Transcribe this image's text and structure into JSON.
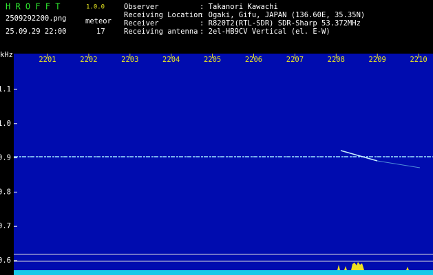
{
  "header": {
    "app_name": "H R O F F T",
    "version": "1.0.0",
    "filename": "2509292200.png",
    "timestamp": "25.09.29 22:00",
    "count_label": "meteor",
    "count": "17",
    "fields": [
      {
        "label": "Observer",
        "value": ": Takanori Kawachi"
      },
      {
        "label": "Receiving Location",
        "value": ": Ogaki, Gifu, JAPAN (136.60E, 35.35N)"
      },
      {
        "label": "Receiver",
        "value": ": R820T2(RTL-SDR) SDR-Sharp 53.372MHz"
      },
      {
        "label": "Receiving antenna",
        "value": ": 2el-HB9CV Vertical (el. E-W)"
      }
    ]
  },
  "spectrogram": {
    "frequency_unit": "kHz",
    "time_labels": [
      "2201",
      "2202",
      "2203",
      "2204",
      "2205",
      "2206",
      "2207",
      "2208",
      "2209",
      "2210"
    ],
    "frequency_labels": [
      "1.1",
      "1.0",
      "0.9",
      "0.8",
      "0.7",
      "0.6"
    ]
  }
}
